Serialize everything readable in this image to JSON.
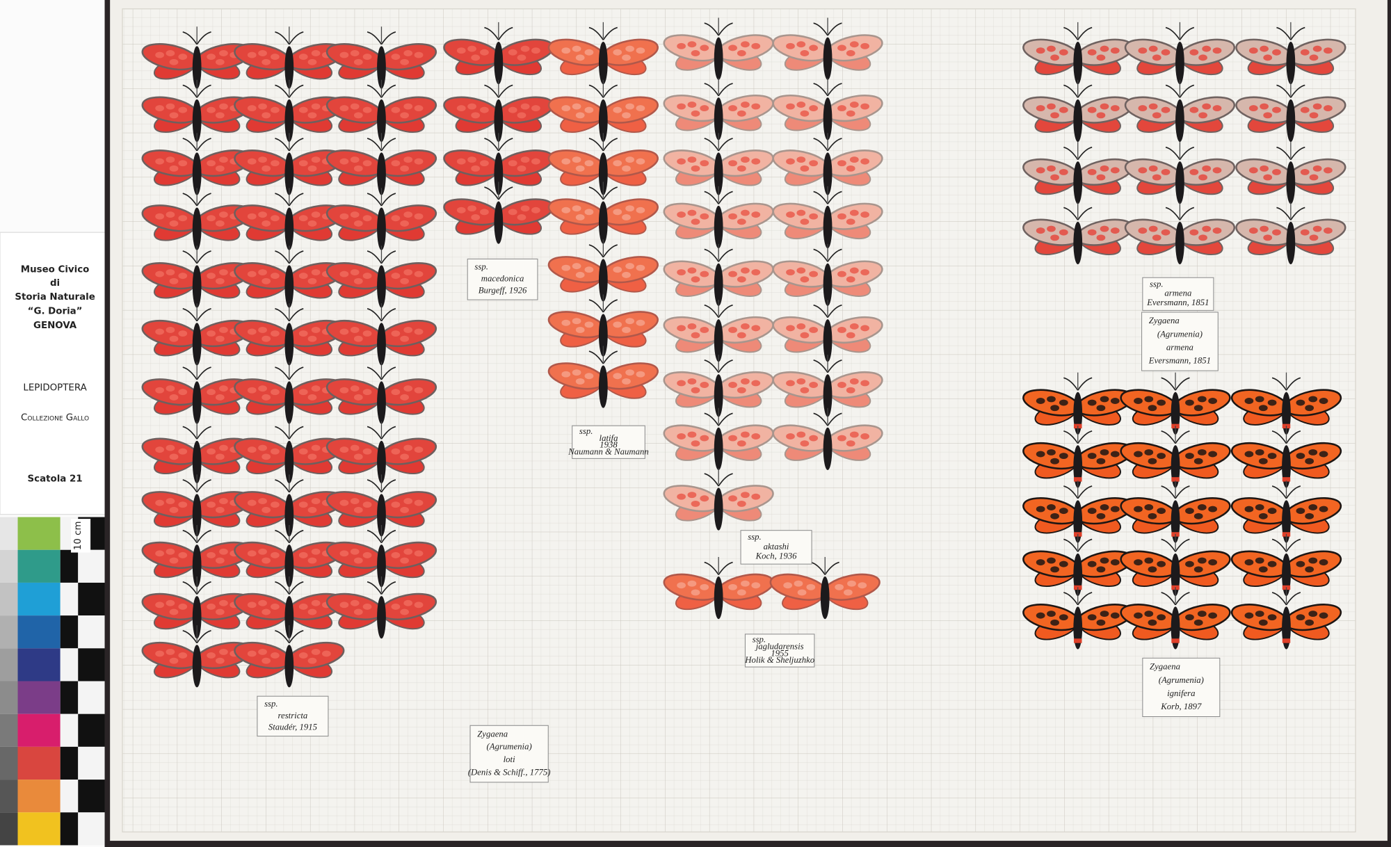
{
  "sidebar": {
    "museum": [
      "Museo Civico",
      "di",
      "Storia Naturale",
      "“G. Doria”",
      "GENOVA"
    ],
    "order": "LEPIDOPTERA",
    "collection": "Collezione Gallo",
    "box": "Scatola 21",
    "scale": "10 cm"
  },
  "labels": [
    {
      "lines": [
        "ssp.",
        "restricta",
        "Staudér, 1915"
      ]
    },
    {
      "lines": [
        "Zygaena",
        "(Agrumenia)",
        "loti",
        "(Denis & Schiff., 1775)"
      ]
    },
    {
      "lines": [
        "ssp.",
        "macedonica",
        "Burgeff, 1926"
      ]
    },
    {
      "lines": [
        "ssp.",
        "latifa",
        "1938",
        "Naumann & Naumann"
      ]
    },
    {
      "lines": [
        "ssp.",
        "aktashi",
        "Koch, 1936"
      ]
    },
    {
      "lines": [
        "ssp.",
        "jagludarensis",
        "1955",
        "Holik & Sheljuzhko"
      ]
    },
    {
      "lines": [
        "ssp.",
        "armena",
        "Eversmann, 1851"
      ]
    },
    {
      "lines": [
        "Zygaena",
        "(Agrumenia)",
        "armena",
        "Eversmann, 1851"
      ]
    },
    {
      "lines": [
        "Zygaena",
        "(Agrumenia)",
        "ignifera",
        "Korb, 1897"
      ]
    }
  ]
}
